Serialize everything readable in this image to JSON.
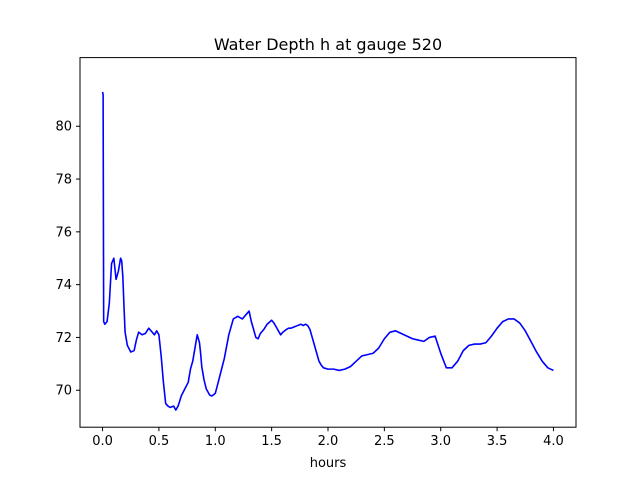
{
  "chart_data": {
    "type": "line",
    "title": "Water Depth h at gauge 520",
    "xlabel": "hours",
    "ylabel": "",
    "xlim": [
      -0.2,
      4.2
    ],
    "ylim": [
      68.6,
      82.6
    ],
    "xticks": [
      0.0,
      0.5,
      1.0,
      1.5,
      2.0,
      2.5,
      3.0,
      3.5,
      4.0
    ],
    "xtick_labels": [
      "0.0",
      "0.5",
      "1.0",
      "1.5",
      "2.0",
      "2.5",
      "3.0",
      "3.5",
      "4.0"
    ],
    "yticks": [
      70,
      72,
      74,
      76,
      78,
      80
    ],
    "ytick_labels": [
      "70",
      "72",
      "74",
      "76",
      "78",
      "80"
    ],
    "grid": false,
    "series": [
      {
        "name": "",
        "color": "#0000ff",
        "x": [
          0.0,
          0.005,
          0.01,
          0.02,
          0.04,
          0.06,
          0.08,
          0.1,
          0.12,
          0.14,
          0.16,
          0.17,
          0.18,
          0.19,
          0.2,
          0.22,
          0.25,
          0.28,
          0.3,
          0.32,
          0.35,
          0.38,
          0.41,
          0.44,
          0.46,
          0.48,
          0.5,
          0.52,
          0.54,
          0.56,
          0.58,
          0.6,
          0.63,
          0.65,
          0.67,
          0.7,
          0.73,
          0.76,
          0.78,
          0.8,
          0.82,
          0.84,
          0.86,
          0.87,
          0.88,
          0.9,
          0.92,
          0.95,
          0.97,
          1.0,
          1.02,
          1.05,
          1.08,
          1.12,
          1.16,
          1.2,
          1.22,
          1.24,
          1.26,
          1.28,
          1.3,
          1.32,
          1.34,
          1.36,
          1.38,
          1.4,
          1.43,
          1.46,
          1.5,
          1.52,
          1.54,
          1.56,
          1.58,
          1.6,
          1.63,
          1.65,
          1.67,
          1.7,
          1.73,
          1.76,
          1.78,
          1.8,
          1.82,
          1.84,
          1.86,
          1.88,
          1.9,
          1.92,
          1.94,
          1.96,
          2.0,
          2.05,
          2.1,
          2.15,
          2.2,
          2.25,
          2.3,
          2.35,
          2.4,
          2.45,
          2.5,
          2.55,
          2.6,
          2.65,
          2.7,
          2.75,
          2.8,
          2.85,
          2.9,
          2.95,
          3.0,
          3.05,
          3.1,
          3.15,
          3.2,
          3.25,
          3.3,
          3.35,
          3.4,
          3.45,
          3.5,
          3.55,
          3.6,
          3.65,
          3.7,
          3.75,
          3.8,
          3.85,
          3.9,
          3.95,
          4.0
        ],
        "y": [
          81.3,
          81.2,
          72.6,
          72.5,
          72.6,
          73.3,
          74.8,
          75.0,
          74.2,
          74.5,
          75.0,
          74.9,
          74.3,
          73.2,
          72.2,
          71.7,
          71.45,
          71.5,
          71.9,
          72.2,
          72.1,
          72.15,
          72.35,
          72.2,
          72.1,
          72.25,
          72.1,
          71.3,
          70.3,
          69.5,
          69.4,
          69.35,
          69.4,
          69.25,
          69.4,
          69.8,
          70.05,
          70.3,
          70.8,
          71.1,
          71.6,
          72.1,
          71.8,
          71.4,
          70.9,
          70.4,
          70.05,
          69.82,
          69.78,
          69.88,
          70.2,
          70.7,
          71.2,
          72.1,
          72.7,
          72.8,
          72.75,
          72.7,
          72.8,
          72.9,
          73.0,
          72.6,
          72.3,
          72.0,
          71.95,
          72.15,
          72.3,
          72.5,
          72.65,
          72.55,
          72.4,
          72.25,
          72.1,
          72.2,
          72.3,
          72.35,
          72.35,
          72.4,
          72.45,
          72.5,
          72.45,
          72.5,
          72.45,
          72.3,
          72.0,
          71.7,
          71.4,
          71.1,
          70.95,
          70.85,
          70.8,
          70.8,
          70.75,
          70.8,
          70.9,
          71.1,
          71.3,
          71.35,
          71.4,
          71.6,
          71.95,
          72.2,
          72.25,
          72.15,
          72.05,
          71.95,
          71.9,
          71.85,
          72.0,
          72.05,
          71.4,
          70.85,
          70.85,
          71.1,
          71.5,
          71.7,
          71.75,
          71.75,
          71.8,
          72.05,
          72.35,
          72.6,
          72.7,
          72.7,
          72.55,
          72.25,
          71.85,
          71.45,
          71.1,
          70.85,
          70.75
        ]
      }
    ]
  }
}
